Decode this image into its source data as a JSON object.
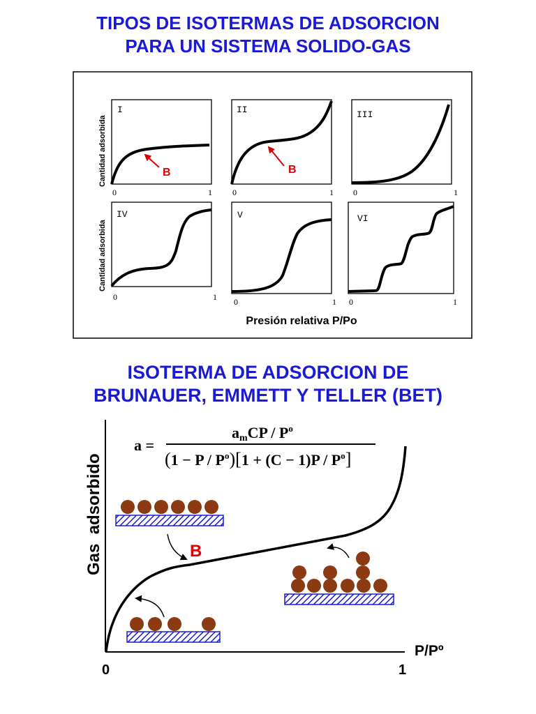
{
  "title_top": {
    "line1": "TIPOS DE ISOTERMAS DE ADSORCION",
    "line2": "PARA UN SISTEMA SOLIDO-GAS"
  },
  "isotherm_panels": {
    "ylabel_top": "Cantidad adsorbida",
    "ylabel_bottom": "Cantidad adsorbida",
    "xlabel": "Presión relativa P/Po",
    "tick_min": "0",
    "tick_max": "1",
    "b_label": "B",
    "panels": [
      {
        "label": "I"
      },
      {
        "label": "II"
      },
      {
        "label": "III"
      },
      {
        "label": "IV"
      },
      {
        "label": "V"
      },
      {
        "label": "VI"
      }
    ]
  },
  "title_bottom": {
    "line1": "ISOTERMA DE ADSORCION DE",
    "line2": "BRUNAUER, EMMETT Y TELLER (BET)"
  },
  "bet_chart": {
    "ylabel": "Gas  adsorbido",
    "xlabel": "P/Pº",
    "x_min": "0",
    "x_max": "1",
    "b_label": "B",
    "formula": {
      "lhs": "a =",
      "num_a": "a",
      "num_sub": "m",
      "num_rest": "CP / P",
      "num_sup": "o",
      "den_part1": "1 − P / P",
      "den_part2": "1 + (C − 1)P / P",
      "den_sup": "o"
    }
  },
  "colors": {
    "title": "#1a1ad6",
    "b_marker": "#e00000",
    "particle": "#8b3a12",
    "surface_stroke": "#1a1ad6"
  }
}
